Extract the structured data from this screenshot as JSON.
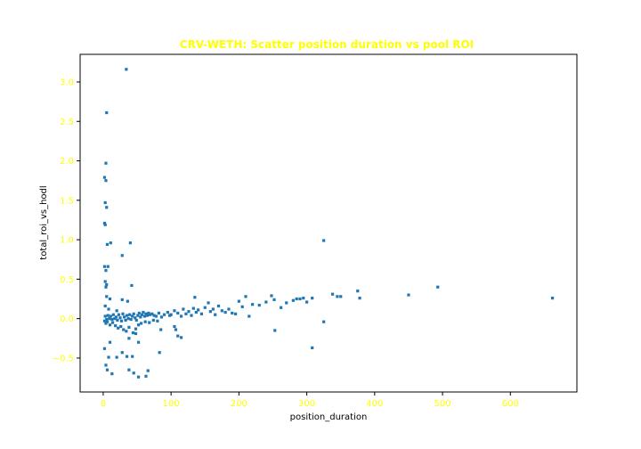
{
  "chart_data": {
    "type": "scatter",
    "title": "CRV-WETH: Scatter position duration vs pool ROI",
    "xlabel": "position_duration",
    "ylabel": "total_roi_vs_hodl",
    "xlim": [
      -34,
      698
    ],
    "ylim": [
      -0.93,
      3.35
    ],
    "xticks": [
      0,
      100,
      200,
      300,
      400,
      500,
      600
    ],
    "yticks": [
      -0.5,
      0.0,
      0.5,
      1.0,
      1.5,
      2.0,
      2.5,
      3.0
    ],
    "xtick_labels": [
      "0",
      "100",
      "200",
      "300",
      "400",
      "500",
      "600"
    ],
    "ytick_labels": [
      "−0.5",
      "0.0",
      "0.5",
      "1.0",
      "1.5",
      "2.0",
      "2.5",
      "3.0"
    ],
    "grid": false,
    "legend": "none",
    "colors": {
      "points": "#1f77b4",
      "title": "#ffff00",
      "ticks": "#ffff00",
      "labels": "#000000"
    },
    "points": [
      [
        34,
        3.16
      ],
      [
        5,
        2.61
      ],
      [
        4,
        1.97
      ],
      [
        2,
        1.79
      ],
      [
        4,
        1.75
      ],
      [
        3,
        1.47
      ],
      [
        5,
        1.41
      ],
      [
        2,
        1.21
      ],
      [
        3,
        1.19
      ],
      [
        6,
        0.94
      ],
      [
        11,
        0.96
      ],
      [
        40,
        0.96
      ],
      [
        28,
        0.8
      ],
      [
        2,
        0.66
      ],
      [
        7,
        0.66
      ],
      [
        4,
        0.61
      ],
      [
        3,
        0.47
      ],
      [
        5,
        0.43
      ],
      [
        4,
        0.4
      ],
      [
        42,
        0.42
      ],
      [
        5,
        0.28
      ],
      [
        10,
        0.25
      ],
      [
        28,
        0.24
      ],
      [
        36,
        0.22
      ],
      [
        3,
        0.16
      ],
      [
        8,
        0.12
      ],
      [
        20,
        0.1
      ],
      [
        3,
        0.03
      ],
      [
        5,
        -0.01
      ],
      [
        7,
        0.04
      ],
      [
        9,
        0.0
      ],
      [
        11,
        0.03
      ],
      [
        13,
        -0.01
      ],
      [
        15,
        0.05
      ],
      [
        17,
        0.0
      ],
      [
        19,
        0.02
      ],
      [
        21,
        -0.02
      ],
      [
        23,
        0.05
      ],
      [
        25,
        0.01
      ],
      [
        27,
        -0.03
      ],
      [
        29,
        0.06
      ],
      [
        31,
        0.02
      ],
      [
        33,
        -0.02
      ],
      [
        35,
        0.04
      ],
      [
        37,
        0.0
      ],
      [
        39,
        0.05
      ],
      [
        41,
        -0.01
      ],
      [
        43,
        0.03
      ],
      [
        45,
        0.06
      ],
      [
        47,
        0.01
      ],
      [
        49,
        -0.02
      ],
      [
        51,
        0.04
      ],
      [
        53,
        0.07
      ],
      [
        55,
        0.02
      ],
      [
        57,
        0.05
      ],
      [
        59,
        0.08
      ],
      [
        61,
        0.03
      ],
      [
        63,
        0.06
      ],
      [
        65,
        0.04
      ],
      [
        67,
        0.07
      ],
      [
        69,
        0.05
      ],
      [
        72,
        0.06
      ],
      [
        75,
        0.04
      ],
      [
        78,
        0.03
      ],
      [
        82,
        0.07
      ],
      [
        86,
        0.02
      ],
      [
        90,
        0.05
      ],
      [
        95,
        0.08
      ],
      [
        98,
        0.04
      ],
      [
        2,
        -0.03
      ],
      [
        4,
        -0.06
      ],
      [
        6,
        -0.04
      ],
      [
        10,
        -0.08
      ],
      [
        14,
        -0.05
      ],
      [
        18,
        -0.09
      ],
      [
        22,
        -0.12
      ],
      [
        26,
        -0.1
      ],
      [
        30,
        -0.14
      ],
      [
        34,
        -0.16
      ],
      [
        38,
        -0.11
      ],
      [
        44,
        -0.18
      ],
      [
        48,
        -0.13
      ],
      [
        52,
        -0.08
      ],
      [
        56,
        -0.06
      ],
      [
        62,
        -0.04
      ],
      [
        68,
        -0.05
      ],
      [
        74,
        -0.02
      ],
      [
        80,
        -0.03
      ],
      [
        2,
        -0.38
      ],
      [
        10,
        -0.3
      ],
      [
        38,
        -0.25
      ],
      [
        48,
        -0.19
      ],
      [
        52,
        -0.3
      ],
      [
        85,
        -0.14
      ],
      [
        105,
        -0.1
      ],
      [
        107,
        -0.14
      ],
      [
        110,
        -0.22
      ],
      [
        115,
        -0.24
      ],
      [
        28,
        -0.43
      ],
      [
        35,
        -0.48
      ],
      [
        83,
        -0.43
      ],
      [
        8,
        -0.49
      ],
      [
        20,
        -0.49
      ],
      [
        43,
        -0.48
      ],
      [
        4,
        -0.59
      ],
      [
        6,
        -0.65
      ],
      [
        13,
        -0.7
      ],
      [
        38,
        -0.65
      ],
      [
        45,
        -0.69
      ],
      [
        52,
        -0.74
      ],
      [
        66,
        -0.66
      ],
      [
        63,
        -0.73
      ],
      [
        253,
        -0.15
      ],
      [
        308,
        -0.37
      ],
      [
        325,
        -0.04
      ],
      [
        100,
        0.05
      ],
      [
        105,
        0.1
      ],
      [
        110,
        0.07
      ],
      [
        115,
        0.03
      ],
      [
        118,
        0.12
      ],
      [
        122,
        0.06
      ],
      [
        126,
        0.09
      ],
      [
        130,
        0.04
      ],
      [
        133,
        0.13
      ],
      [
        135,
        0.27
      ],
      [
        137,
        0.08
      ],
      [
        140,
        0.11
      ],
      [
        145,
        0.06
      ],
      [
        150,
        0.14
      ],
      [
        155,
        0.2
      ],
      [
        158,
        0.09
      ],
      [
        162,
        0.12
      ],
      [
        165,
        0.05
      ],
      [
        170,
        0.16
      ],
      [
        175,
        0.1
      ],
      [
        180,
        0.08
      ],
      [
        185,
        0.12
      ],
      [
        190,
        0.07
      ],
      [
        195,
        0.06
      ],
      [
        200,
        0.22
      ],
      [
        205,
        0.15
      ],
      [
        210,
        0.28
      ],
      [
        215,
        0.03
      ],
      [
        220,
        0.18
      ],
      [
        230,
        0.17
      ],
      [
        240,
        0.21
      ],
      [
        248,
        0.29
      ],
      [
        252,
        0.24
      ],
      [
        262,
        0.14
      ],
      [
        270,
        0.2
      ],
      [
        280,
        0.23
      ],
      [
        285,
        0.25
      ],
      [
        290,
        0.25
      ],
      [
        295,
        0.26
      ],
      [
        300,
        0.21
      ],
      [
        308,
        0.26
      ],
      [
        325,
        0.99
      ],
      [
        338,
        0.31
      ],
      [
        345,
        0.28
      ],
      [
        350,
        0.28
      ],
      [
        375,
        0.35
      ],
      [
        378,
        0.26
      ],
      [
        450,
        0.3
      ],
      [
        493,
        0.4
      ],
      [
        662,
        0.26
      ]
    ]
  }
}
